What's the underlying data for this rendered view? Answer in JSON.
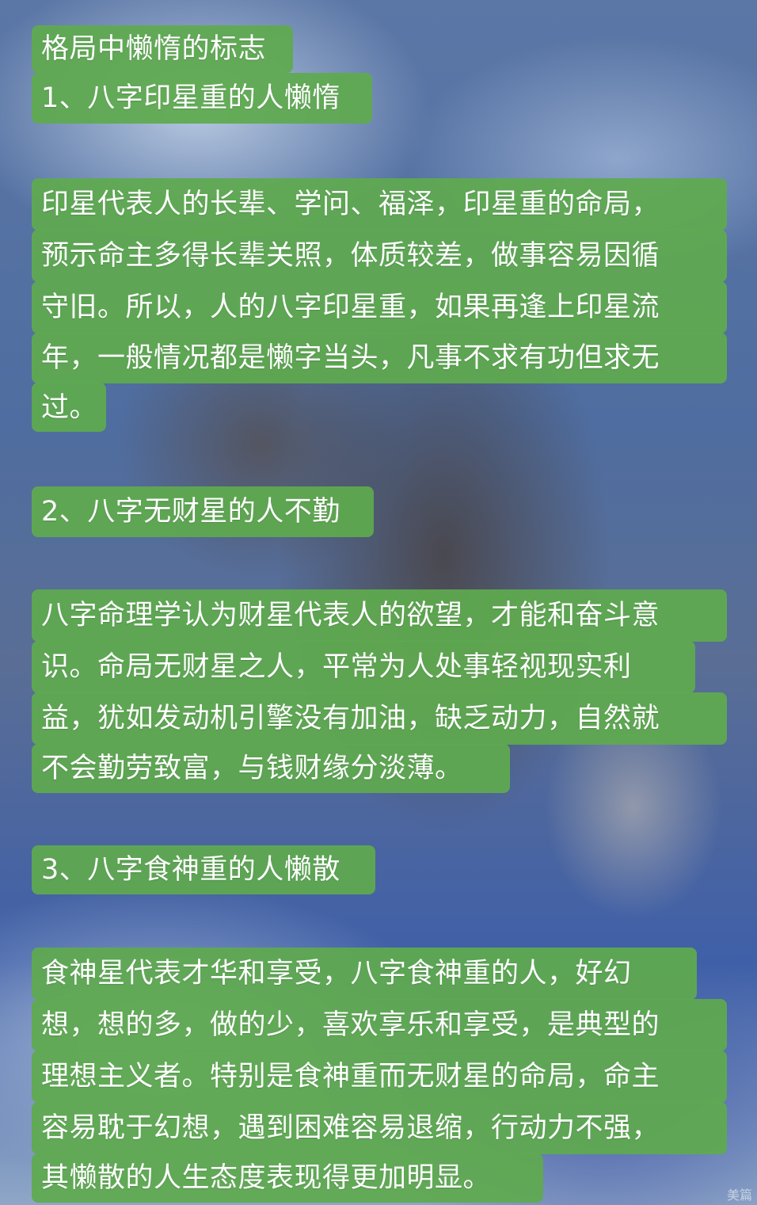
{
  "title": "格局中懒惰的标志",
  "sections": [
    {
      "heading": "1、八字印星重的人懒惰",
      "lines": [
        "印星代表人的长辈、学问、福泽，印星重的命局，",
        "预示命主多得长辈关照，体质较差，做事容易因循",
        "守旧。所以，人的八字印星重，如果再逢上印星流",
        "年，一般情况都是懒字当头，凡事不求有功但求无",
        "过。"
      ]
    },
    {
      "heading": "2、八字无财星的人不勤",
      "lines": [
        "八字命理学认为财星代表人的欲望，才能和奋斗意",
        "识。命局无财星之人，平常为人处事轻视现实利",
        "益，犹如发动机引擎没有加油，缺乏动力，自然就",
        "不会勤劳致富，与钱财缘分淡薄。"
      ]
    },
    {
      "heading": "3、八字食神重的人懒散",
      "lines": [
        "食神星代表才华和享受，八字食神重的人，好幻",
        "想，想的多，做的少，喜欢享乐和享受，是典型的",
        "理想主义者。特别是食神重而无财星的命局，命主",
        "容易耽于幻想，遇到困难容易退缩，行动力不强，",
        "其懒散的人生态度表现得更加明显。"
      ]
    }
  ],
  "watermark": "美篇",
  "colors": {
    "highlight": "#5faa4f",
    "text": "#ffffff"
  }
}
